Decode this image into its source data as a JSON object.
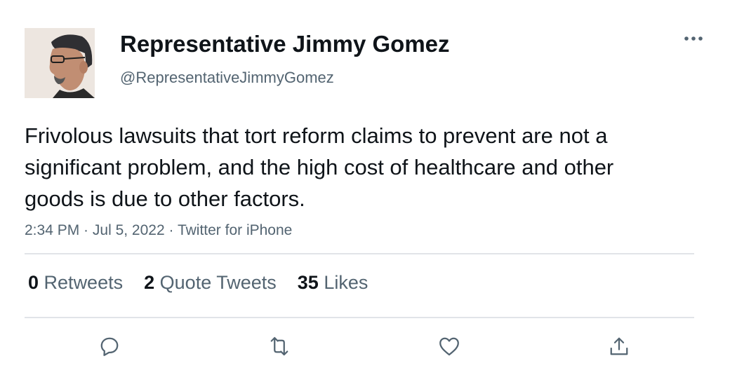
{
  "author": {
    "display_name": "Representative Jimmy Gomez",
    "handle": "@RepresentativeJimmyGomez"
  },
  "tweet": {
    "text": "Frivolous lawsuits that tort reform claims to prevent are not a significant problem, and the high cost of healthcare and other goods is due to other factors.",
    "time": "2:34 PM",
    "separator1": " · ",
    "date": "Jul 5, 2022",
    "separator2": " · ",
    "source": "Twitter for iPhone"
  },
  "stats": {
    "retweets_count": "0",
    "retweets_label": "Retweets",
    "quotes_count": "2",
    "quotes_label": "Quote Tweets",
    "likes_count": "35",
    "likes_label": "Likes"
  },
  "icons": {
    "more": "more-dots-icon",
    "reply": "reply-icon",
    "retweet": "retweet-icon",
    "like": "like-heart-icon",
    "share": "share-icon"
  },
  "colors": {
    "text_primary": "#0f1419",
    "text_secondary": "#536471",
    "divider": "#e1e4e8"
  }
}
